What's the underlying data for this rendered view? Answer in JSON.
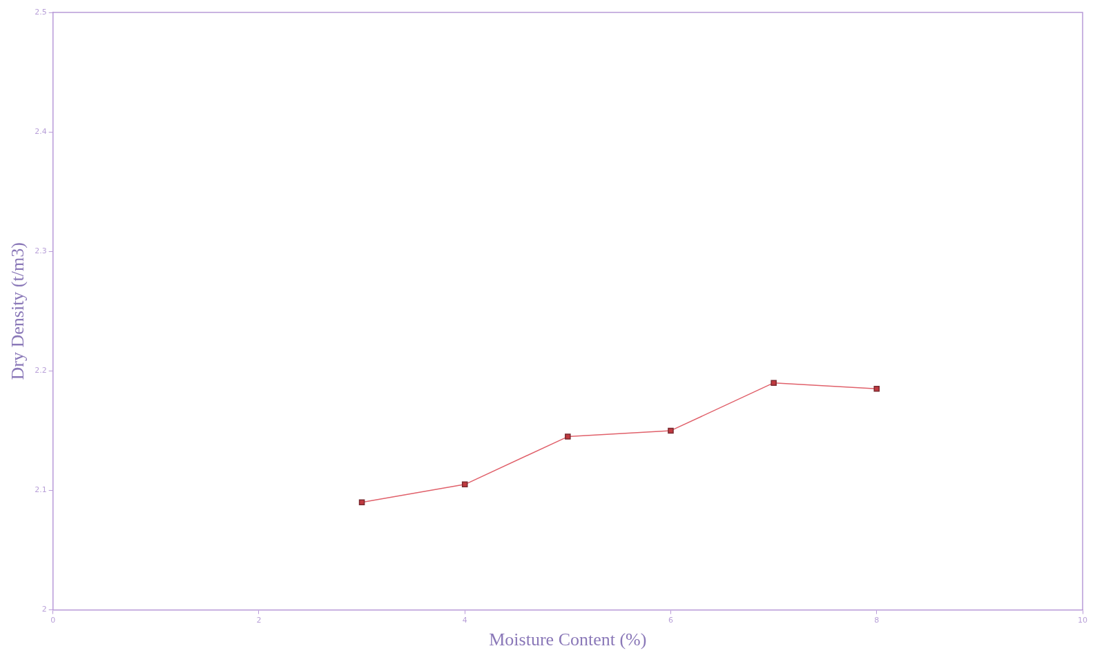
{
  "chart_data": {
    "type": "line",
    "xlabel": "Moisture Content (%)",
    "ylabel": "Dry Density (t/m3)",
    "x": [
      3,
      4,
      5,
      6,
      7,
      8
    ],
    "series": [
      {
        "color": "#e0606a",
        "values": [
          2.09,
          2.105,
          2.145,
          2.15,
          2.19,
          2.185
        ]
      }
    ],
    "xlim": [
      0,
      10
    ],
    "xticks": [
      0,
      2,
      4,
      6,
      8,
      10
    ],
    "ylim": [
      2,
      2.5
    ],
    "yticks": [
      2,
      2.1,
      2.2,
      2.3,
      2.4,
      2.5
    ],
    "grid": false,
    "legend": false,
    "marker": "square",
    "line_style": "solid"
  }
}
